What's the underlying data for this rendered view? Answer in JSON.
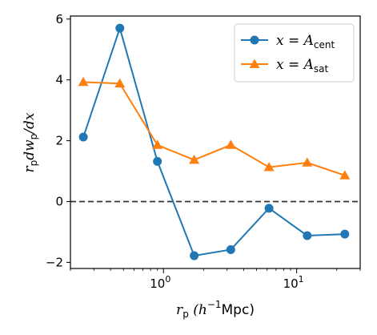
{
  "chart_data": {
    "type": "line",
    "title": "",
    "xlabel": "r_p (h⁻¹Mpc)",
    "ylabel": "r_p dw_p/dx",
    "xscale": "log",
    "xlim": [
      0.2,
      30
    ],
    "ylim": [
      -2.2,
      6.1
    ],
    "xticks": [
      {
        "value": 1,
        "label_base": "10",
        "label_exp": "0"
      },
      {
        "value": 10,
        "label_base": "10",
        "label_exp": "1"
      }
    ],
    "yticks": [
      -2,
      0,
      2,
      4,
      6
    ],
    "reference_line": {
      "y": 0,
      "style": "dashed",
      "color": "#333333"
    },
    "grid": false,
    "legend": {
      "position": "top-right"
    },
    "x": [
      0.25,
      0.47,
      0.9,
      1.7,
      3.2,
      6.2,
      12.0,
      23.0
    ],
    "series": [
      {
        "name": "x = A_cent",
        "name_main": "x = A",
        "name_sub": "cent",
        "color": "#1f77b4",
        "marker": "circle",
        "values": [
          2.12,
          5.7,
          1.32,
          -1.78,
          -1.58,
          -0.22,
          -1.12,
          -1.07
        ]
      },
      {
        "name": "x = A_sat",
        "name_main": "x = A",
        "name_sub": "sat",
        "color": "#ff7f0e",
        "marker": "triangle",
        "values": [
          3.93,
          3.88,
          1.86,
          1.37,
          1.86,
          1.13,
          1.28,
          0.86
        ]
      }
    ]
  }
}
